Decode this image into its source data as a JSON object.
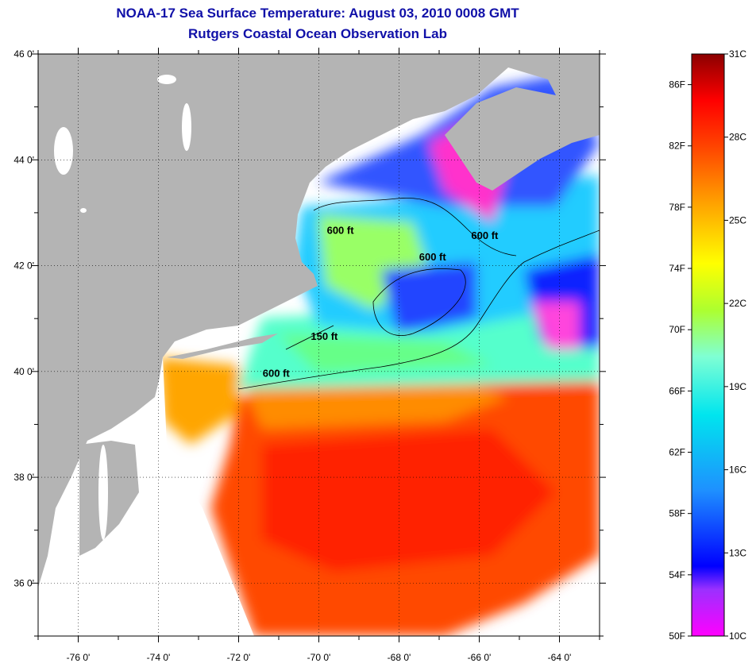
{
  "title": "NOAA-17 Sea Surface Temperature:  August 03, 2010 0008 GMT",
  "subtitle": "Rutgers Coastal Ocean Observation Lab",
  "map": {
    "lon_range": [
      -77,
      -63
    ],
    "lat_range": [
      35,
      46
    ],
    "lon_ticks": [
      "-76 0'",
      "-74 0'",
      "-72 0'",
      "-70 0'",
      "-68 0'",
      "-66 0'",
      "-64 0'"
    ],
    "lat_ticks": [
      "46 0'",
      "44 0'",
      "42 0'",
      "40 0'",
      "38 0'",
      "36 0'"
    ],
    "land_color": "#b4b4b4",
    "cloud_color": "#ffffff",
    "contour_labels": [
      {
        "text": "600 ft",
        "lon": -69.8,
        "lat": 42.6
      },
      {
        "text": "600 ft",
        "lon": -66.2,
        "lat": 42.5
      },
      {
        "text": "600 ft",
        "lon": -67.5,
        "lat": 42.1
      },
      {
        "text": "150 ft",
        "lon": -70.2,
        "lat": 40.6
      },
      {
        "text": "600 ft",
        "lon": -71.4,
        "lat": 39.9
      }
    ]
  },
  "colorbar": {
    "fahrenheit_labels": [
      "86F",
      "82F",
      "78F",
      "74F",
      "70F",
      "66F",
      "62F",
      "58F",
      "54F",
      "50F"
    ],
    "celsius_labels": [
      "31C",
      "28C",
      "25C",
      "22C",
      "19C",
      "16C",
      "13C",
      "10C"
    ],
    "colors": [
      "#ff00ff",
      "#8a2be2",
      "#0000ff",
      "#1e90ff",
      "#00e0ff",
      "#7fffd4",
      "#adff2f",
      "#ffff00",
      "#ffa500",
      "#ff4500",
      "#ff0000",
      "#8b0000"
    ]
  }
}
